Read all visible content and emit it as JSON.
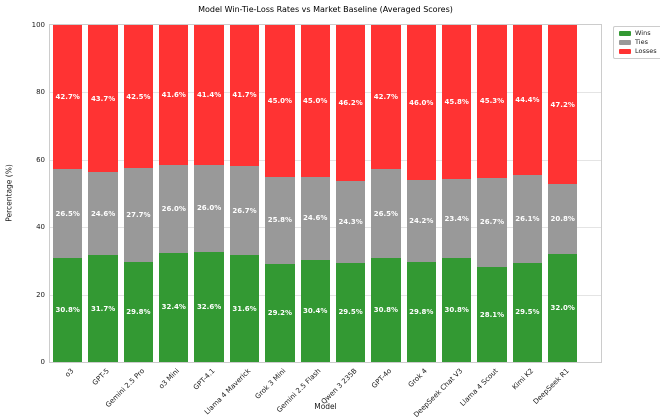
{
  "title": "Model Win-Tie-Loss Rates vs Market Baseline (Averaged Scores)",
  "axes": {
    "x_label": "Model",
    "y_label": "Percentage (%)",
    "y_ticks": [
      0,
      20,
      40,
      60,
      80,
      100
    ]
  },
  "legend": {
    "entries": [
      "Wins",
      "Ties",
      "Losses"
    ]
  },
  "colors": {
    "wins": "#339933",
    "ties": "#999999",
    "losses": "#ff3333",
    "grid": "#e4e4e4",
    "spine": "#cccccc"
  },
  "chart_data": {
    "type": "bar",
    "stacked": true,
    "title": "Model Win-Tie-Loss Rates vs Market Baseline (Averaged Scores)",
    "xlabel": "Model",
    "ylabel": "Percentage (%)",
    "ylim": [
      0,
      100
    ],
    "grid": "horizontal",
    "legend_position": "outside-top-right",
    "bar_label_format": "percent-one-decimal",
    "categories": [
      "o3",
      "GPT-5",
      "Gemini 2.5 Pro",
      "o3 Mini",
      "GPT-4.1",
      "Llama 4 Maverick",
      "Grok 3 Mini",
      "Gemini 2.5 Flash",
      "Qwen 3 235B",
      "GPT-4o",
      "Grok 4",
      "DeepSeek Chat V3",
      "Llama 4 Scout",
      "Kimi K2",
      "DeepSeek R1"
    ],
    "series": [
      {
        "name": "Wins",
        "color": "#339933",
        "values": [
          30.8,
          31.7,
          29.8,
          32.4,
          32.6,
          31.6,
          29.2,
          30.4,
          29.5,
          30.8,
          29.8,
          30.8,
          28.1,
          29.5,
          32.0
        ]
      },
      {
        "name": "Ties",
        "color": "#999999",
        "values": [
          26.5,
          24.6,
          27.7,
          26.0,
          26.0,
          26.7,
          25.8,
          24.6,
          24.3,
          26.5,
          24.2,
          23.4,
          26.7,
          26.1,
          20.8
        ]
      },
      {
        "name": "Losses",
        "color": "#ff3333",
        "values": [
          42.7,
          43.7,
          42.5,
          41.6,
          41.4,
          41.7,
          45.0,
          45.0,
          46.2,
          42.7,
          46.0,
          45.8,
          45.3,
          44.4,
          47.2
        ]
      }
    ]
  }
}
